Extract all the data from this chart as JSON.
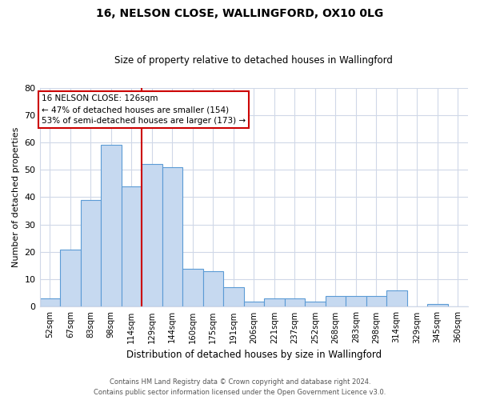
{
  "title": "16, NELSON CLOSE, WALLINGFORD, OX10 0LG",
  "subtitle": "Size of property relative to detached houses in Wallingford",
  "xlabel": "Distribution of detached houses by size in Wallingford",
  "ylabel": "Number of detached properties",
  "bin_labels": [
    "52sqm",
    "67sqm",
    "83sqm",
    "98sqm",
    "114sqm",
    "129sqm",
    "144sqm",
    "160sqm",
    "175sqm",
    "191sqm",
    "206sqm",
    "221sqm",
    "237sqm",
    "252sqm",
    "268sqm",
    "283sqm",
    "298sqm",
    "314sqm",
    "329sqm",
    "345sqm",
    "360sqm"
  ],
  "bar_values": [
    3,
    21,
    39,
    59,
    44,
    52,
    51,
    14,
    13,
    7,
    2,
    3,
    3,
    2,
    4,
    4,
    4,
    6,
    0,
    1,
    0
  ],
  "bar_color": "#c6d9f0",
  "bar_edge_color": "#5b9bd5",
  "reference_line_after_index": 4,
  "reference_line_color": "#cc0000",
  "ylim": [
    0,
    80
  ],
  "yticks": [
    0,
    10,
    20,
    30,
    40,
    50,
    60,
    70,
    80
  ],
  "annotation_line1": "16 NELSON CLOSE: 126sqm",
  "annotation_line2": "← 47% of detached houses are smaller (154)",
  "annotation_line3": "53% of semi-detached houses are larger (173) →",
  "annotation_box_color": "#ffffff",
  "annotation_box_edge_color": "#cc0000",
  "footer_line1": "Contains HM Land Registry data © Crown copyright and database right 2024.",
  "footer_line2": "Contains public sector information licensed under the Open Government Licence v3.0.",
  "background_color": "#ffffff",
  "grid_color": "#d0d8e8"
}
